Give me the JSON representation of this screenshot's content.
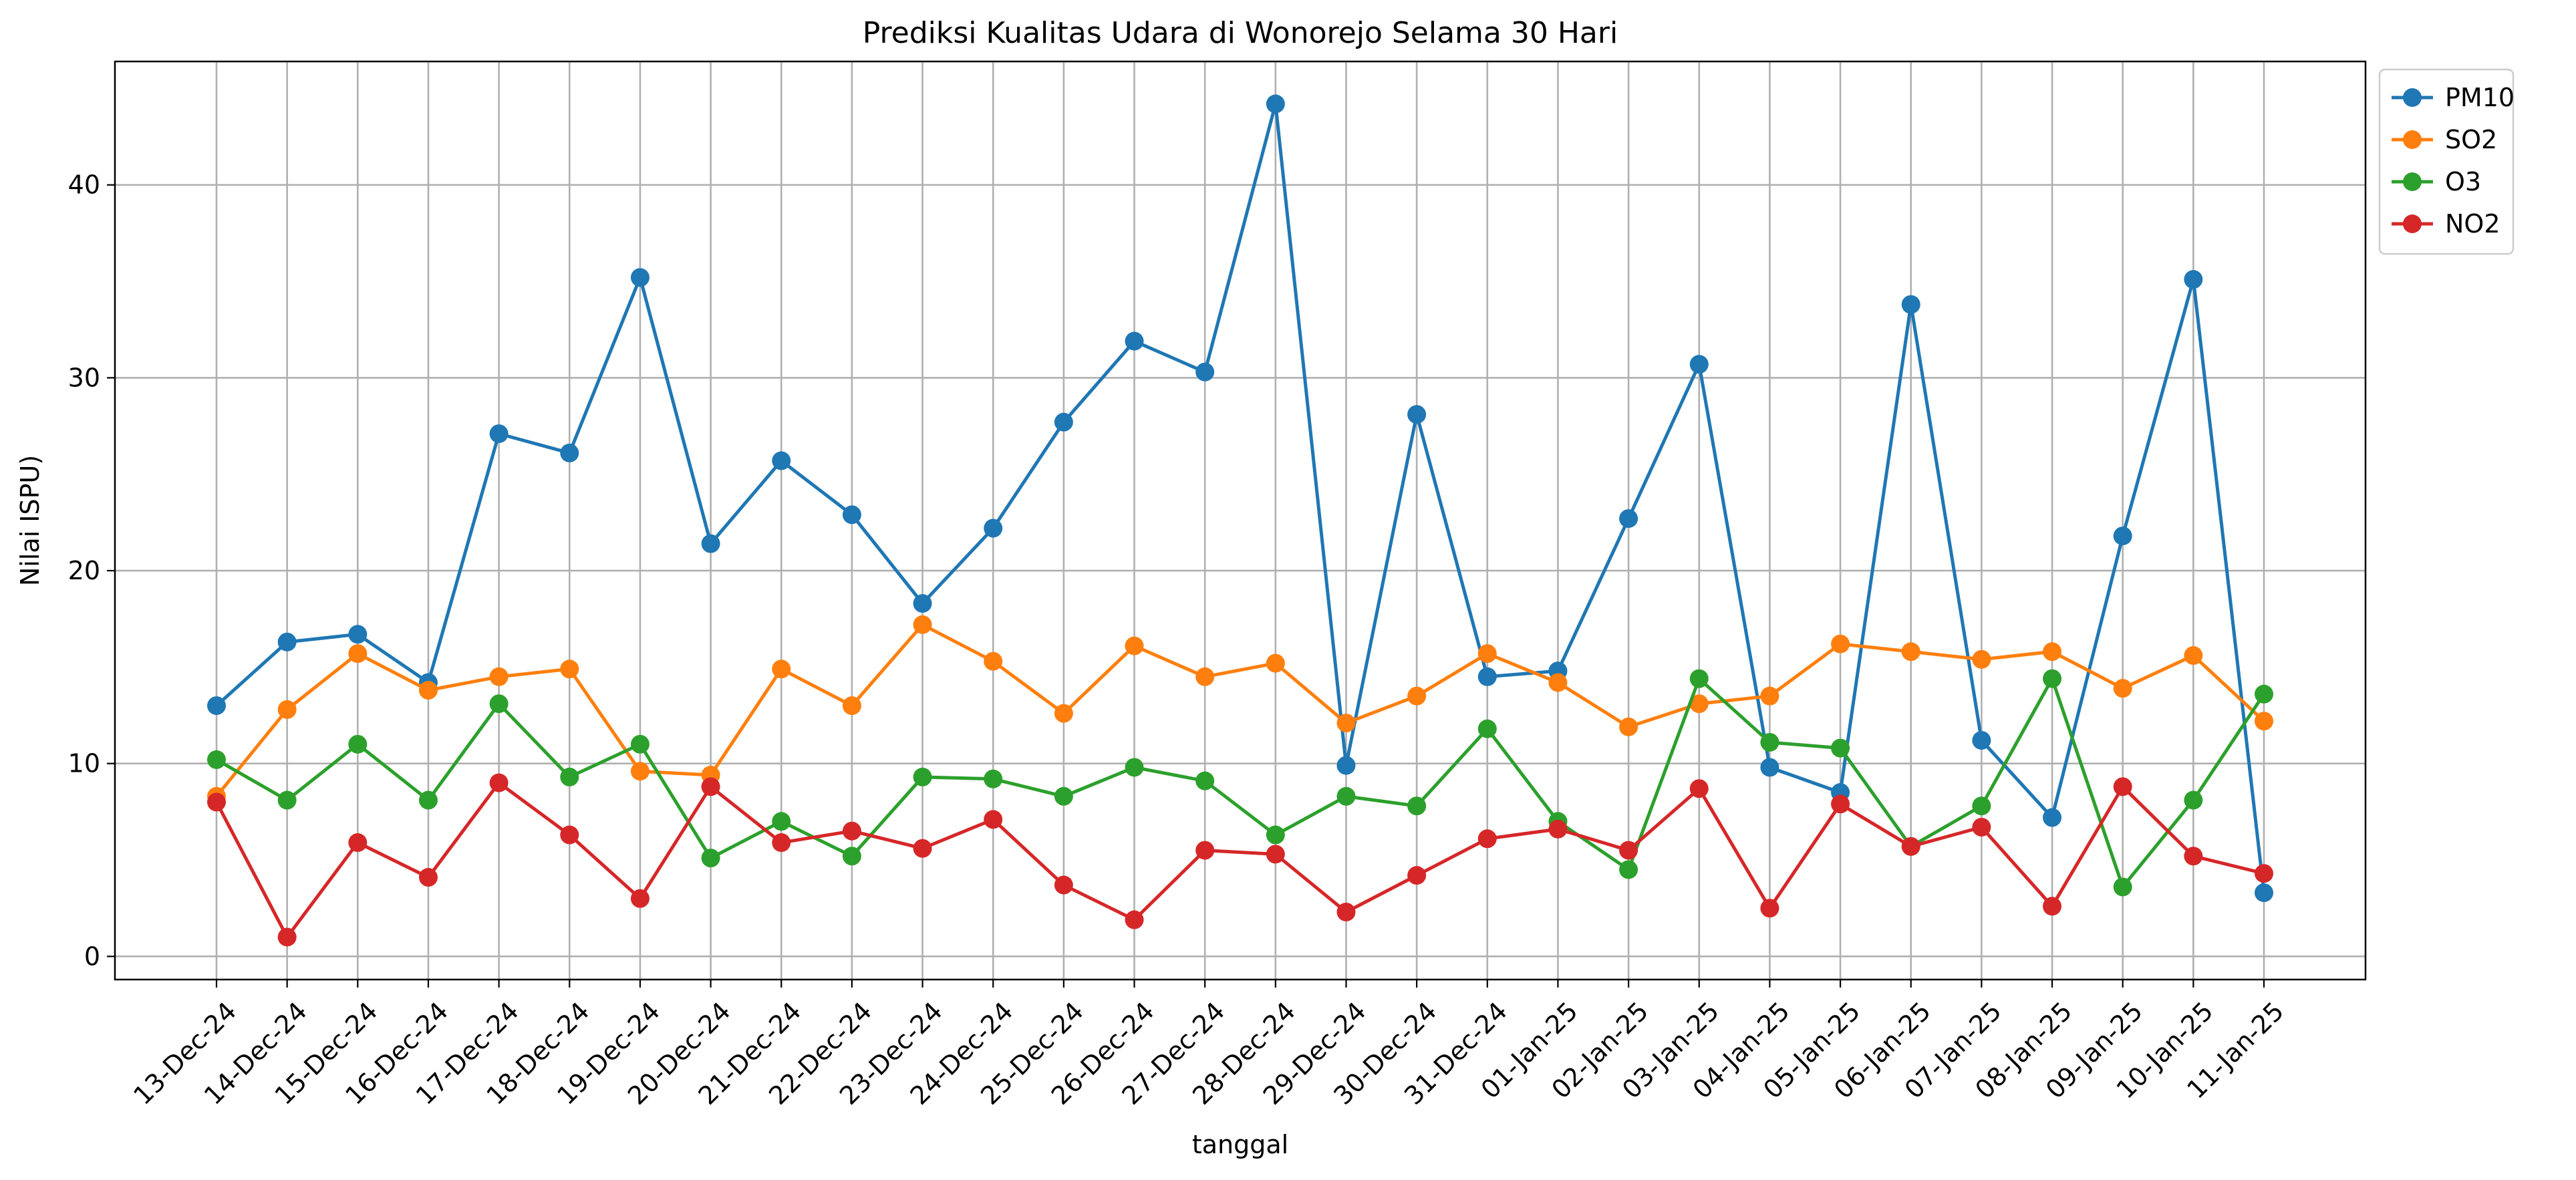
{
  "chart_data": {
    "type": "line",
    "title": "Prediksi Kualitas Udara di Wonorejo Selama 30 Hari",
    "xlabel": "tanggal",
    "ylabel": "Nilai ISPU)",
    "categories": [
      "13-Dec-24",
      "14-Dec-24",
      "15-Dec-24",
      "16-Dec-24",
      "17-Dec-24",
      "18-Dec-24",
      "19-Dec-24",
      "20-Dec-24",
      "21-Dec-24",
      "22-Dec-24",
      "23-Dec-24",
      "24-Dec-24",
      "25-Dec-24",
      "26-Dec-24",
      "27-Dec-24",
      "28-Dec-24",
      "29-Dec-24",
      "30-Dec-24",
      "31-Dec-24",
      "01-Jan-25",
      "02-Jan-25",
      "03-Jan-25",
      "04-Jan-25",
      "05-Jan-25",
      "06-Jan-25",
      "07-Jan-25",
      "08-Jan-25",
      "09-Jan-25",
      "10-Jan-25",
      "11-Jan-25"
    ],
    "yticks": [
      0,
      10,
      20,
      30,
      40
    ],
    "ylim": [
      -1.2,
      46.4
    ],
    "grid": true,
    "legend_position": "outside top-right",
    "series": [
      {
        "name": "PM10",
        "color": "#1f77b4",
        "values": [
          13.0,
          16.3,
          16.7,
          14.2,
          27.1,
          26.1,
          35.2,
          21.4,
          25.7,
          22.9,
          18.3,
          22.2,
          27.7,
          31.9,
          30.3,
          44.2,
          9.9,
          28.1,
          14.5,
          14.8,
          22.7,
          30.7,
          9.8,
          8.5,
          33.8,
          11.2,
          7.2,
          21.8,
          35.1,
          3.3
        ]
      },
      {
        "name": "SO2",
        "color": "#ff7f0e",
        "values": [
          8.3,
          12.8,
          15.7,
          13.8,
          14.5,
          14.9,
          9.6,
          9.4,
          14.9,
          13.0,
          17.2,
          15.3,
          12.6,
          16.1,
          14.5,
          15.2,
          12.1,
          13.5,
          15.7,
          14.2,
          11.9,
          13.1,
          13.5,
          16.2,
          15.8,
          15.4,
          15.8,
          13.9,
          15.6,
          12.2
        ]
      },
      {
        "name": "O3",
        "color": "#2ca02c",
        "values": [
          10.2,
          8.1,
          11.0,
          8.1,
          13.1,
          9.3,
          11.0,
          5.1,
          7.0,
          5.2,
          9.3,
          9.2,
          8.3,
          9.8,
          9.1,
          6.3,
          8.3,
          7.8,
          11.8,
          7.0,
          4.5,
          14.4,
          11.1,
          10.8,
          5.7,
          7.8,
          14.4,
          3.6,
          8.1,
          13.6
        ]
      },
      {
        "name": "NO2",
        "color": "#d62728",
        "values": [
          8.0,
          1.0,
          5.9,
          4.1,
          9.0,
          6.3,
          3.0,
          8.8,
          5.9,
          6.5,
          5.6,
          7.1,
          3.7,
          1.9,
          5.5,
          5.3,
          2.3,
          4.2,
          6.1,
          6.6,
          5.5,
          8.7,
          2.5,
          7.9,
          5.7,
          6.7,
          2.6,
          8.8,
          5.2,
          4.3
        ]
      }
    ]
  }
}
